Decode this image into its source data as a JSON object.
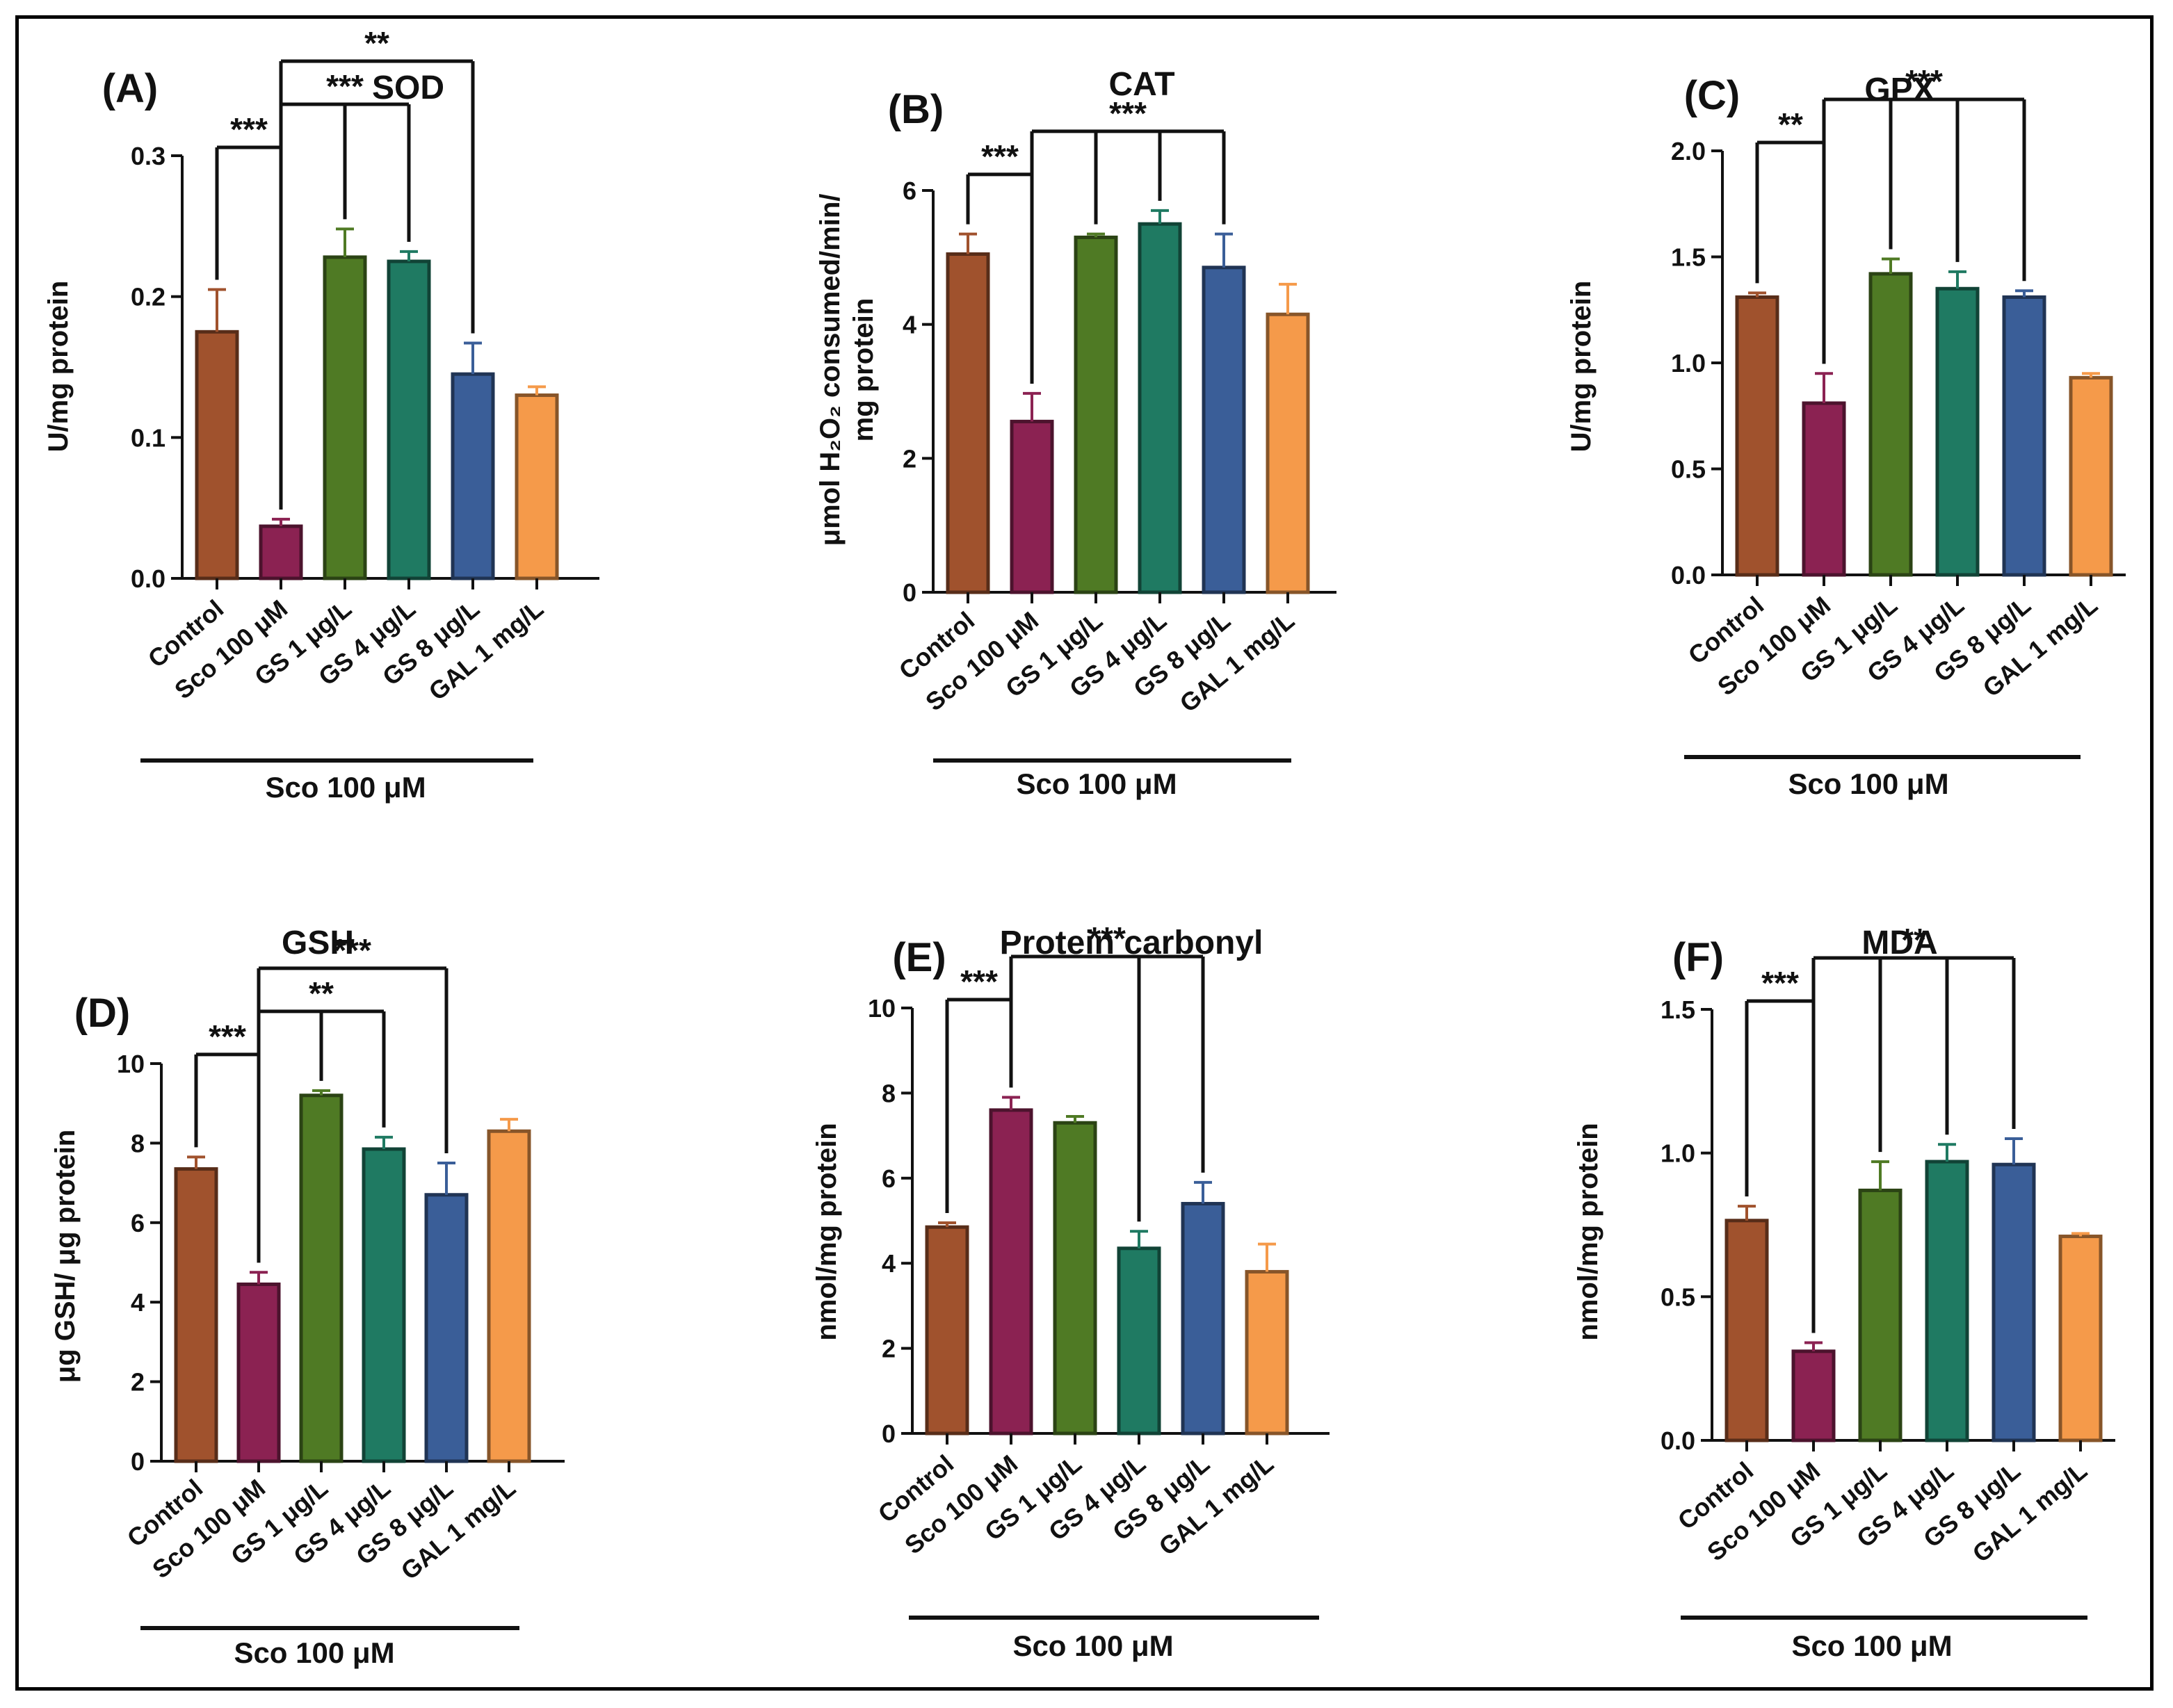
{
  "figure": {
    "group_label": "Sco 100 μM"
  },
  "chart_data": [
    {
      "type": "bar",
      "panel_label": "(A)",
      "title": "SOD",
      "ylabel_lines": [
        "U/mg protein"
      ],
      "categories": [
        "Control",
        "Sco 100 μM",
        "GS 1 μg/L",
        "GS 4 μg/L",
        "GS 8 μg/L",
        "GAL 1 mg/L"
      ],
      "values": [
        0.175,
        0.037,
        0.228,
        0.225,
        0.145,
        0.13
      ],
      "errors": [
        0.03,
        0.005,
        0.02,
        0.007,
        0.022,
        0.006
      ],
      "ylim": [
        0,
        0.3
      ],
      "yticks": [
        0.0,
        0.1,
        0.2,
        0.3
      ],
      "ytick_labels": [
        "0.0",
        "0.1",
        "0.2",
        "0.3"
      ],
      "colors": [
        "#a0522d",
        "#8b2252",
        "#4f7a24",
        "#1f7a62",
        "#3a5e98",
        "#f59a4a"
      ],
      "group_label": "Sco 100 μM",
      "significance": [
        {
          "label": "***",
          "from": 0,
          "to": [
            1
          ]
        },
        {
          "label": "***",
          "from": 1,
          "to": [
            2,
            3
          ]
        },
        {
          "label": "**",
          "from": 1,
          "to": [
            4
          ]
        }
      ]
    },
    {
      "type": "bar",
      "panel_label": "(B)",
      "title": "CAT",
      "ylabel_lines": [
        "μmol H₂O₂ consumed/min/",
        "mg protein"
      ],
      "categories": [
        "Control",
        "Sco 100 μM",
        "GS 1 μg/L",
        "GS 4 μg/L",
        "GS 8 μg/L",
        "GAL 1 mg/L"
      ],
      "values": [
        5.05,
        2.55,
        5.3,
        5.5,
        4.85,
        4.15
      ],
      "errors": [
        0.3,
        0.42,
        0.05,
        0.2,
        0.5,
        0.45
      ],
      "ylim": [
        0,
        6
      ],
      "yticks": [
        0,
        2,
        4,
        6
      ],
      "ytick_labels": [
        "0",
        "2",
        "4",
        "6"
      ],
      "colors": [
        "#a0522d",
        "#8b2252",
        "#4f7a24",
        "#1f7a62",
        "#3a5e98",
        "#f59a4a"
      ],
      "group_label": "Sco 100 μM",
      "significance": [
        {
          "label": "***",
          "from": 0,
          "to": [
            1
          ]
        },
        {
          "label": "***",
          "from": 1,
          "to": [
            2,
            3,
            4
          ]
        }
      ]
    },
    {
      "type": "bar",
      "panel_label": "(C)",
      "title": "GPX",
      "ylabel_lines": [
        "U/mg protein"
      ],
      "categories": [
        "Control",
        "Sco 100 μM",
        "GS 1 μg/L",
        "GS 4 μg/L",
        "GS 8 μg/L",
        "GAL 1 mg/L"
      ],
      "values": [
        1.31,
        0.81,
        1.42,
        1.35,
        1.31,
        0.93
      ],
      "errors": [
        0.02,
        0.14,
        0.07,
        0.08,
        0.03,
        0.02
      ],
      "ylim": [
        0,
        2
      ],
      "yticks": [
        0,
        0.5,
        1.0,
        1.5,
        2.0
      ],
      "ytick_labels": [
        "0.0",
        "0.5",
        "1.0",
        "1.5",
        "2.0"
      ],
      "colors": [
        "#a0522d",
        "#8b2252",
        "#4f7a24",
        "#1f7a62",
        "#3a5e98",
        "#f59a4a"
      ],
      "group_label": "Sco 100 μM",
      "significance": [
        {
          "label": "**",
          "from": 0,
          "to": [
            1
          ]
        },
        {
          "label": "***",
          "from": 1,
          "to": [
            2,
            3,
            4
          ]
        }
      ]
    },
    {
      "type": "bar",
      "panel_label": "(D)",
      "title": "GSH",
      "ylabel_lines": [
        "μg GSH/ μg protein"
      ],
      "categories": [
        "Control",
        "Sco 100 μM",
        "GS 1 μg/L",
        "GS 4 μg/L",
        "GS 8 μg/L",
        "GAL 1 mg/L"
      ],
      "values": [
        7.35,
        4.45,
        9.2,
        7.85,
        6.7,
        8.3
      ],
      "errors": [
        0.3,
        0.3,
        0.12,
        0.3,
        0.8,
        0.3
      ],
      "ylim": [
        0,
        10
      ],
      "yticks": [
        0,
        2,
        4,
        6,
        8,
        10
      ],
      "ytick_labels": [
        "0",
        "2",
        "4",
        "6",
        "8",
        "10"
      ],
      "colors": [
        "#a0522d",
        "#8b2252",
        "#4f7a24",
        "#1f7a62",
        "#3a5e98",
        "#f59a4a"
      ],
      "group_label": "Sco 100 μM",
      "significance": [
        {
          "label": "***",
          "from": 0,
          "to": [
            1
          ]
        },
        {
          "label": "**",
          "from": 1,
          "to": [
            2,
            3
          ]
        },
        {
          "label": "***",
          "from": 1,
          "to": [
            4
          ]
        }
      ]
    },
    {
      "type": "bar",
      "panel_label": "(E)",
      "title": "Protein carbonyl",
      "ylabel_lines": [
        "nmol/mg protein"
      ],
      "categories": [
        "Control",
        "Sco 100 μM",
        "GS 1 μg/L",
        "GS 4 μg/L",
        "GS 8 μg/L",
        "GAL 1 mg/L"
      ],
      "values": [
        4.85,
        7.6,
        7.3,
        4.35,
        5.4,
        3.8
      ],
      "errors": [
        0.1,
        0.3,
        0.15,
        0.4,
        0.5,
        0.65
      ],
      "ylim": [
        0,
        10
      ],
      "yticks": [
        0,
        2,
        4,
        6,
        8,
        10
      ],
      "ytick_labels": [
        "0",
        "2",
        "4",
        "6",
        "8",
        "10"
      ],
      "colors": [
        "#a0522d",
        "#8b2252",
        "#4f7a24",
        "#1f7a62",
        "#3a5e98",
        "#f59a4a"
      ],
      "group_label": "Sco 100 μM",
      "significance": [
        {
          "label": "***",
          "from": 0,
          "to": [
            1
          ]
        },
        {
          "label": "***",
          "from": 1,
          "to": [
            3,
            4
          ]
        }
      ]
    },
    {
      "type": "bar",
      "panel_label": "(F)",
      "title": "MDA",
      "ylabel_lines": [
        "nmol/mg protein"
      ],
      "categories": [
        "Control",
        "Sco 100 μM",
        "GS 1 μg/L",
        "GS 4 μg/L",
        "GS 8 μg/L",
        "GAL 1 mg/L"
      ],
      "values": [
        0.765,
        0.31,
        0.87,
        0.97,
        0.96,
        0.71
      ],
      "errors": [
        0.05,
        0.03,
        0.1,
        0.06,
        0.09,
        0.01
      ],
      "ylim": [
        0,
        1.5
      ],
      "yticks": [
        0,
        0.5,
        1.0,
        1.5
      ],
      "ytick_labels": [
        "0.0",
        "0.5",
        "1.0",
        "1.5"
      ],
      "colors": [
        "#a0522d",
        "#8b2252",
        "#4f7a24",
        "#1f7a62",
        "#3a5e98",
        "#f59a4a"
      ],
      "group_label": "Sco 100 μM",
      "significance": [
        {
          "label": "***",
          "from": 0,
          "to": [
            1
          ]
        },
        {
          "label": "**",
          "from": 1,
          "to": [
            2,
            3,
            4
          ]
        }
      ]
    }
  ]
}
